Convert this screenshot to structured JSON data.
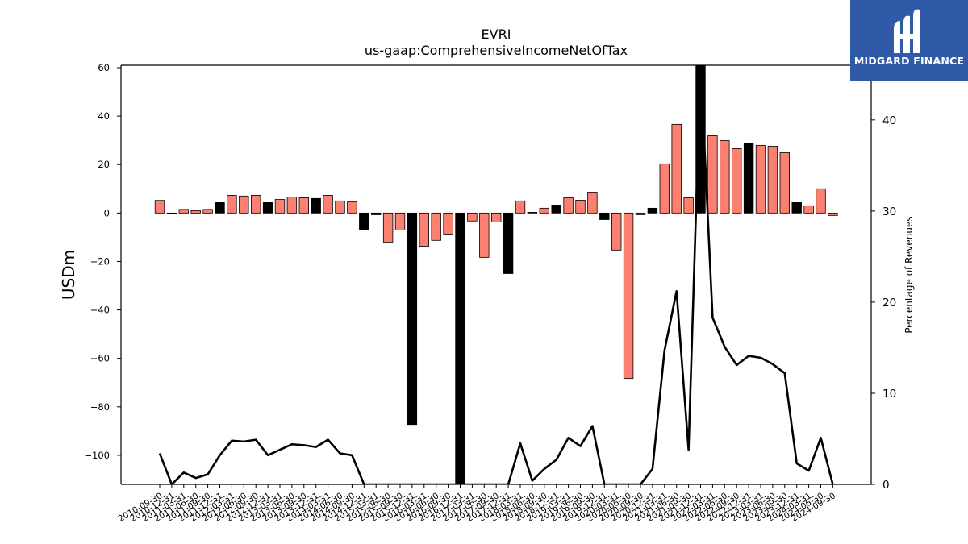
{
  "chart_data": {
    "type": "bar",
    "title": "EVRI",
    "subtitle": "us-gaap:ComprehensiveIncomeNetOfTax",
    "ylabel": "USDm",
    "y2label": "Percentage of Revenues",
    "ylim": [
      -112,
      61
    ],
    "y2lim": [
      0,
      46
    ],
    "yticks": [
      -100,
      -80,
      -60,
      -40,
      -20,
      0,
      20,
      40,
      60
    ],
    "y2ticks": [
      0,
      10,
      20,
      30,
      40
    ],
    "grid": false,
    "categories": [
      "2010-09-30",
      "2010-12-31",
      "2011-03-31",
      "2011-06-30",
      "2011-09-30",
      "2011-12-31",
      "2012-03-31",
      "2012-06-30",
      "2012-09-30",
      "2012-12-31",
      "2013-03-31",
      "2013-06-30",
      "2013-09-30",
      "2013-12-31",
      "2014-03-31",
      "2014-06-30",
      "2014-09-30",
      "2014-12-31",
      "2015-03-31",
      "2015-06-30",
      "2015-09-30",
      "2015-12-31",
      "2016-03-31",
      "2016-06-30",
      "2016-09-30",
      "2016-12-31",
      "2017-03-31",
      "2017-06-30",
      "2017-09-30",
      "2017-12-31",
      "2018-03-31",
      "2018-06-30",
      "2018-09-30",
      "2018-12-31",
      "2019-03-31",
      "2019-06-30",
      "2019-09-30",
      "2019-12-31",
      "2020-03-31",
      "2020-06-30",
      "2020-09-30",
      "2020-12-31",
      "2021-03-31",
      "2021-06-30",
      "2021-09-30",
      "2021-12-31",
      "2022-03-31",
      "2022-06-30",
      "2022-09-30",
      "2022-12-31",
      "2023-03-31",
      "2023-06-30",
      "2023-09-30",
      "2023-12-31",
      "2024-03-31",
      "2024-06-30",
      "2024-09-30"
    ],
    "tick_labels": [
      "2010-09-30",
      "2010-12-31",
      "2011-03-31",
      "2011-06-30",
      "2011-09-30",
      "2011-12-31",
      "2012-03-31",
      "2012-06-30",
      "2012-09-30",
      "2012-12-31",
      "2013-03-31",
      "2013-06-30",
      "2013-09-30",
      "2013-12-31",
      "2014-03-31",
      "2014-06-30",
      "2014-09-30",
      "2014-12-31",
      "2015-03-31",
      "2015-06-30",
      "2015-09-30",
      "2015-12-31",
      "2016-03-31",
      "2016-06-30",
      "2016-09-30",
      "2016-12-31",
      "2017-03-31",
      "2017-06-30",
      "2017-09-30",
      "2017-12-31",
      "2018-03-31",
      "2018-06-30",
      "2018-09-30",
      "2018-12-31",
      "2019-03-31",
      "2019-06-30",
      "2019-09-30",
      "2019-12-31",
      "2020-03-31",
      "2020-06-30",
      "2020-09-30",
      "2020-12-31",
      "2021-03-31",
      "2021-06-30",
      "2021-09-30",
      "2021-12-31",
      "2022-03-31",
      "2022-06-30",
      "2022-09-30",
      "2022-12-31",
      "2023-03-31",
      "2023-06-30",
      "2023-09-30",
      "2023-12-31",
      "2024-03-31",
      "2024-06-30",
      "2024-09-30"
    ],
    "series": [
      {
        "kind": "bar",
        "values": [
          5.2,
          -0.3,
          1.5,
          1.0,
          1.5,
          4.3,
          7.3,
          7.0,
          7.3,
          4.3,
          5.6,
          6.6,
          6.3,
          6.0,
          7.3,
          5.0,
          4.6,
          -7.0,
          -0.7,
          -12.0,
          -7.0,
          -87.3,
          -13.7,
          -11.3,
          -8.7,
          -112,
          -3.3,
          -18.3,
          -3.7,
          -25.0,
          5.0,
          0.3,
          2.0,
          3.3,
          6.3,
          5.3,
          8.6,
          -2.7,
          -15.3,
          -68.3,
          -0.7,
          2.0,
          20.3,
          36.6,
          6.3,
          61,
          31.9,
          29.9,
          26.6,
          28.9,
          27.9,
          27.6,
          24.9,
          4.3,
          3.0,
          10.0,
          -1.0
        ],
        "colors": [
          "#fa8072",
          "#000000",
          "#fa8072",
          "#fa8072",
          "#fa8072",
          "#000000",
          "#fa8072",
          "#fa8072",
          "#fa8072",
          "#000000",
          "#fa8072",
          "#fa8072",
          "#fa8072",
          "#000000",
          "#fa8072",
          "#fa8072",
          "#fa8072",
          "#000000",
          "#000000",
          "#fa8072",
          "#fa8072",
          "#000000",
          "#fa8072",
          "#fa8072",
          "#fa8072",
          "#000000",
          "#fa8072",
          "#fa8072",
          "#fa8072",
          "#000000",
          "#fa8072",
          "#000000",
          "#fa8072",
          "#000000",
          "#fa8072",
          "#fa8072",
          "#fa8072",
          "#000000",
          "#fa8072",
          "#fa8072",
          "#fa8072",
          "#000000",
          "#fa8072",
          "#fa8072",
          "#fa8072",
          "#000000",
          "#fa8072",
          "#fa8072",
          "#fa8072",
          "#000000",
          "#fa8072",
          "#fa8072",
          "#fa8072",
          "#000000",
          "#fa8072",
          "#fa8072",
          "#fa8072"
        ]
      },
      {
        "kind": "line",
        "axis": "right",
        "color": "#000000",
        "values": [
          3.4,
          0,
          1.3,
          0.7,
          1.1,
          3.2,
          4.8,
          4.7,
          4.9,
          3.2,
          3.8,
          4.4,
          4.3,
          4.1,
          4.9,
          3.4,
          3.2,
          0,
          0,
          0,
          0,
          0,
          0,
          0,
          0,
          0,
          0,
          0,
          0,
          0,
          4.5,
          0.4,
          1.7,
          2.7,
          5.1,
          4.2,
          6.4,
          0,
          0,
          0,
          0,
          1.7,
          14.7,
          21.2,
          3.8,
          46,
          18.3,
          15.1,
          13.1,
          14.1,
          13.9,
          13.2,
          12.2,
          2.3,
          1.5,
          5.1,
          0
        ]
      }
    ]
  },
  "brand": {
    "name": "MIDGARD FINANCE",
    "color": "#2f5aa8",
    "icon": "midgard-logo-icon"
  }
}
